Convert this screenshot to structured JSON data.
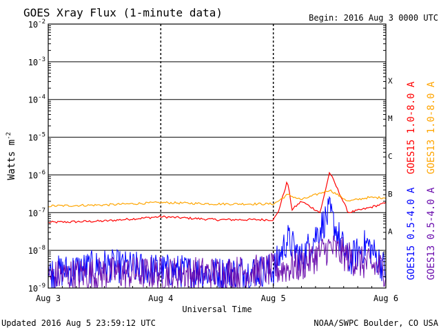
{
  "chart_data": {
    "type": "line",
    "title": "GOES Xray Flux (1-minute data)",
    "begin_label": "Begin:  2016 Aug 3 0000 UTC",
    "xlabel": "Universal Time",
    "ylabel_base": "Watts m",
    "ylabel_exp": "-2",
    "y_scale": "log",
    "ylim": [
      1e-09,
      0.01
    ],
    "xlim": [
      "2016-08-03 00:00",
      "2016-08-06 00:00"
    ],
    "grid": true,
    "x_ticks": [
      "Aug 3",
      "Aug 4",
      "Aug 5",
      "Aug 6"
    ],
    "y_ticks": [
      {
        "value": 0.01,
        "base": "10",
        "exp": "-2"
      },
      {
        "value": 0.001,
        "base": "10",
        "exp": "-3"
      },
      {
        "value": 0.0001,
        "base": "10",
        "exp": "-4"
      },
      {
        "value": 1e-05,
        "base": "10",
        "exp": "-5"
      },
      {
        "value": 1e-06,
        "base": "10",
        "exp": "-6"
      },
      {
        "value": 1e-07,
        "base": "10",
        "exp": "-7"
      },
      {
        "value": 1e-08,
        "base": "10",
        "exp": "-8"
      },
      {
        "value": 1e-09,
        "base": "10",
        "exp": "-9"
      }
    ],
    "flare_classes": [
      "X",
      "M",
      "C",
      "B",
      "A"
    ],
    "series": [
      {
        "name": "GOES15 1.0-8.0 A",
        "color": "#ff0000",
        "x": [
          "2016-08-03 00:00",
          "2016-08-03 12:00",
          "2016-08-04 00:00",
          "2016-08-04 12:00",
          "2016-08-05 00:00",
          "2016-08-05 01:00",
          "2016-08-05 03:00",
          "2016-08-05 04:00",
          "2016-08-05 06:00",
          "2016-08-05 10:00",
          "2016-08-05 12:00",
          "2016-08-05 16:00",
          "2016-08-05 20:00",
          "2016-08-05 23:59"
        ],
        "values": [
          5.5e-08,
          6e-08,
          7.8e-08,
          6.5e-08,
          6.5e-08,
          1e-07,
          7e-07,
          1.2e-07,
          2e-07,
          1e-07,
          1.2e-06,
          1e-07,
          1.3e-07,
          1.8e-07
        ]
      },
      {
        "name": "GOES13 1.0-8.0 A",
        "color": "#ffa500",
        "x": [
          "2016-08-03 00:00",
          "2016-08-03 12:00",
          "2016-08-04 00:00",
          "2016-08-04 12:00",
          "2016-08-05 00:00",
          "2016-08-05 01:00",
          "2016-08-05 03:00",
          "2016-08-05 06:00",
          "2016-08-05 12:00",
          "2016-08-05 16:00",
          "2016-08-05 20:00",
          "2016-08-05 23:59"
        ],
        "values": [
          1.5e-07,
          1.6e-07,
          1.85e-07,
          1.7e-07,
          1.7e-07,
          2e-07,
          3e-07,
          2.2e-07,
          4e-07,
          2e-07,
          2.5e-07,
          2.5e-07
        ]
      },
      {
        "name": "GOES15 0.5-4.0 A",
        "color": "#0000ff",
        "x": [
          "2016-08-03 00:00",
          "2016-08-03 12:00",
          "2016-08-04 00:00",
          "2016-08-04 12:00",
          "2016-08-05 00:00",
          "2016-08-05 03:00",
          "2016-08-05 06:00",
          "2016-08-05 12:00",
          "2016-08-05 16:00",
          "2016-08-05 20:00",
          "2016-08-05 23:59"
        ],
        "values": [
          2.5e-09,
          4e-09,
          3e-09,
          2.5e-09,
          3e-09,
          2e-08,
          6e-09,
          1e-07,
          5e-09,
          1.5e-08,
          3e-09
        ]
      },
      {
        "name": "GOES13 0.5-4.0 A",
        "color": "#6a0dad",
        "x": [
          "2016-08-03 00:00",
          "2016-08-03 12:00",
          "2016-08-04 00:00",
          "2016-08-04 12:00",
          "2016-08-05 00:00",
          "2016-08-05 06:00",
          "2016-08-05 12:00",
          "2016-08-05 18:00",
          "2016-08-05 23:59"
        ],
        "values": [
          2e-09,
          2.5e-09,
          2.5e-09,
          2.5e-09,
          3e-09,
          4e-09,
          1.2e-08,
          5e-09,
          3e-09
        ]
      }
    ]
  },
  "footer": {
    "updated": "Updated 2016 Aug  5 23:59:12 UTC",
    "credit": "NOAA/SWPC Boulder, CO USA"
  }
}
